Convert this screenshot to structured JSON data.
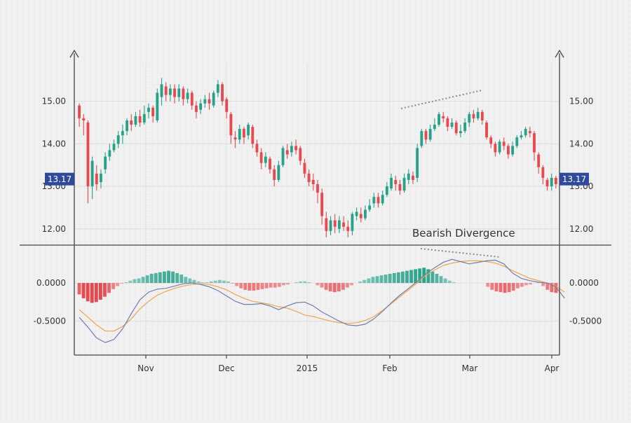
{
  "chart_data": [
    {
      "type": "candlestick",
      "title": "",
      "x_ticks": [
        "Nov",
        "Dec",
        "2015",
        "Feb",
        "Mar",
        "Apr"
      ],
      "y_ticks": [
        "15.00",
        "14.00",
        "13.00",
        "12.00"
      ],
      "ylim": [
        11.7,
        15.9
      ],
      "grid": true,
      "price_tag": "13.17",
      "price_value": 13.17,
      "annotation": "Bearish Divergence",
      "colors": {
        "up": "#26a289",
        "down": "#e8484e",
        "trendline": "#8a8a8a"
      },
      "candles": [
        [
          14.9,
          14.6,
          14.95,
          14.4
        ],
        [
          14.6,
          14.55,
          14.7,
          14.2
        ],
        [
          14.5,
          13.0,
          14.55,
          12.6
        ],
        [
          13.0,
          13.6,
          13.7,
          12.7
        ],
        [
          13.3,
          13.05,
          13.5,
          12.9
        ],
        [
          13.1,
          13.3,
          13.4,
          12.95
        ],
        [
          13.4,
          13.7,
          13.8,
          13.3
        ],
        [
          13.7,
          13.85,
          14.0,
          13.6
        ],
        [
          13.85,
          14.0,
          14.1,
          13.8
        ],
        [
          14.0,
          14.2,
          14.3,
          13.9
        ],
        [
          14.2,
          14.3,
          14.45,
          14.0
        ],
        [
          14.3,
          14.55,
          14.6,
          14.2
        ],
        [
          14.55,
          14.45,
          14.7,
          14.3
        ],
        [
          14.45,
          14.65,
          14.75,
          14.4
        ],
        [
          14.65,
          14.5,
          14.8,
          14.4
        ],
        [
          14.5,
          14.7,
          14.9,
          14.45
        ],
        [
          14.75,
          14.85,
          14.95,
          14.6
        ],
        [
          14.85,
          14.65,
          14.9,
          14.5
        ],
        [
          14.55,
          15.2,
          15.3,
          14.5
        ],
        [
          15.1,
          15.4,
          15.55,
          14.9
        ],
        [
          15.35,
          15.15,
          15.45,
          15.0
        ],
        [
          15.15,
          15.3,
          15.4,
          15.0
        ],
        [
          15.3,
          15.1,
          15.4,
          14.95
        ],
        [
          15.1,
          15.3,
          15.4,
          15.0
        ],
        [
          15.3,
          15.05,
          15.35,
          14.9
        ],
        [
          15.05,
          15.2,
          15.3,
          14.95
        ],
        [
          15.2,
          14.9,
          15.25,
          14.8
        ],
        [
          14.9,
          14.75,
          15.0,
          14.6
        ],
        [
          14.8,
          14.95,
          15.05,
          14.7
        ],
        [
          14.95,
          15.05,
          15.15,
          14.85
        ],
        [
          15.05,
          14.95,
          15.2,
          14.8
        ],
        [
          14.9,
          15.2,
          15.25,
          14.85
        ],
        [
          15.2,
          15.4,
          15.5,
          15.1
        ],
        [
          15.4,
          15.0,
          15.45,
          14.9
        ],
        [
          15.05,
          14.75,
          15.1,
          14.6
        ],
        [
          14.7,
          14.2,
          14.75,
          14.0
        ],
        [
          14.15,
          14.1,
          14.3,
          13.9
        ],
        [
          14.1,
          14.35,
          14.45,
          14.0
        ],
        [
          14.35,
          14.15,
          14.4,
          14.0
        ],
        [
          14.2,
          14.45,
          14.5,
          14.1
        ],
        [
          14.4,
          14.0,
          14.45,
          13.9
        ],
        [
          14.0,
          13.8,
          14.1,
          13.7
        ],
        [
          13.8,
          13.55,
          13.9,
          13.4
        ],
        [
          13.55,
          13.7,
          13.8,
          13.45
        ],
        [
          13.65,
          13.4,
          13.7,
          13.3
        ],
        [
          13.4,
          13.15,
          13.5,
          13.0
        ],
        [
          13.15,
          13.5,
          13.6,
          13.1
        ],
        [
          13.5,
          13.9,
          13.95,
          13.45
        ],
        [
          13.85,
          13.75,
          14.0,
          13.65
        ],
        [
          13.8,
          13.95,
          14.05,
          13.7
        ],
        [
          13.95,
          13.85,
          14.1,
          13.75
        ],
        [
          13.9,
          13.6,
          13.95,
          13.5
        ],
        [
          13.55,
          13.3,
          13.65,
          13.2
        ],
        [
          13.3,
          13.1,
          13.4,
          13.0
        ],
        [
          13.15,
          13.05,
          13.3,
          12.9
        ],
        [
          13.05,
          12.85,
          13.15,
          12.6
        ],
        [
          12.85,
          12.3,
          12.95,
          12.1
        ],
        [
          12.25,
          11.95,
          12.4,
          11.8
        ],
        [
          11.95,
          12.2,
          12.3,
          11.85
        ],
        [
          12.2,
          12.05,
          12.35,
          11.9
        ],
        [
          12.0,
          12.2,
          12.3,
          11.9
        ],
        [
          12.15,
          12.05,
          12.3,
          11.95
        ],
        [
          12.05,
          11.95,
          12.2,
          11.8
        ],
        [
          11.95,
          12.35,
          12.4,
          11.85
        ],
        [
          12.3,
          12.4,
          12.5,
          12.2
        ],
        [
          12.35,
          12.25,
          12.5,
          12.15
        ],
        [
          12.25,
          12.45,
          12.55,
          12.2
        ],
        [
          12.45,
          12.55,
          12.7,
          12.4
        ],
        [
          12.6,
          12.75,
          12.85,
          12.5
        ],
        [
          12.75,
          12.6,
          12.85,
          12.5
        ],
        [
          12.6,
          12.8,
          12.9,
          12.55
        ],
        [
          12.8,
          13.0,
          13.1,
          12.75
        ],
        [
          12.95,
          13.2,
          13.3,
          12.9
        ],
        [
          13.15,
          13.05,
          13.25,
          12.9
        ],
        [
          13.05,
          12.9,
          13.15,
          12.8
        ],
        [
          12.9,
          13.2,
          13.3,
          12.85
        ],
        [
          13.15,
          13.3,
          13.4,
          13.05
        ],
        [
          13.25,
          13.15,
          13.35,
          13.05
        ],
        [
          13.2,
          13.9,
          14.0,
          13.1
        ],
        [
          13.95,
          14.3,
          14.35,
          13.9
        ],
        [
          14.3,
          14.1,
          14.35,
          14.0
        ],
        [
          14.1,
          14.35,
          14.45,
          14.05
        ],
        [
          14.35,
          14.45,
          14.6,
          14.3
        ],
        [
          14.45,
          14.7,
          14.75,
          14.4
        ],
        [
          14.65,
          14.6,
          14.75,
          14.5
        ],
        [
          14.6,
          14.4,
          14.65,
          14.3
        ],
        [
          14.4,
          14.5,
          14.6,
          14.35
        ],
        [
          14.5,
          14.25,
          14.55,
          14.2
        ],
        [
          14.25,
          14.3,
          14.45,
          14.15
        ],
        [
          14.3,
          14.5,
          14.6,
          14.25
        ],
        [
          14.5,
          14.7,
          14.75,
          14.4
        ],
        [
          14.7,
          14.6,
          14.8,
          14.5
        ],
        [
          14.6,
          14.75,
          14.85,
          14.55
        ],
        [
          14.75,
          14.55,
          14.8,
          14.45
        ],
        [
          14.5,
          14.15,
          14.55,
          14.1
        ],
        [
          14.15,
          14.0,
          14.2,
          13.9
        ],
        [
          14.0,
          13.8,
          14.05,
          13.7
        ],
        [
          13.8,
          14.05,
          14.1,
          13.75
        ],
        [
          14.05,
          13.95,
          14.15,
          13.85
        ],
        [
          13.95,
          13.75,
          14.0,
          13.65
        ],
        [
          13.75,
          13.95,
          14.05,
          13.7
        ],
        [
          13.95,
          14.15,
          14.2,
          13.9
        ],
        [
          14.15,
          14.2,
          14.3,
          14.1
        ],
        [
          14.2,
          14.35,
          14.4,
          14.15
        ],
        [
          14.3,
          14.25,
          14.4,
          14.15
        ],
        [
          14.25,
          13.8,
          14.3,
          13.6
        ],
        [
          13.75,
          13.45,
          13.8,
          13.3
        ],
        [
          13.45,
          13.2,
          13.5,
          13.05
        ],
        [
          13.15,
          13.0,
          13.2,
          12.9
        ],
        [
          13.0,
          13.2,
          13.3,
          12.9
        ],
        [
          13.2,
          13.05,
          13.25,
          12.95
        ]
      ]
    },
    {
      "type": "macd",
      "title": "",
      "x_ticks": [
        "Nov",
        "Dec",
        "2015",
        "Feb",
        "Mar",
        "Apr"
      ],
      "y_ticks": [
        "0.0000",
        "-0.5000"
      ],
      "ylim": [
        -0.88,
        0.45
      ],
      "grid": true,
      "colors": {
        "pos_hist": "#26a289",
        "neg_hist": "#e8484e",
        "macd_line": "#6f7fb0",
        "signal_line": "#f0a44a",
        "trendline": "#8a8a8a"
      },
      "macd_line": {
        "x": [
          0,
          2,
          4,
          6,
          8,
          10,
          12,
          14,
          16,
          18,
          20,
          22,
          24,
          26,
          28,
          30,
          32,
          34,
          36,
          38,
          40,
          42,
          44,
          46,
          48,
          50,
          52,
          54,
          56,
          58,
          60,
          62,
          64,
          66,
          68,
          70,
          72,
          74,
          76,
          78,
          80,
          82,
          84,
          86,
          88,
          90,
          92,
          94,
          96,
          98,
          100,
          102,
          104,
          106,
          108,
          110,
          112
        ],
        "values": [
          -0.45,
          -0.58,
          -0.72,
          -0.78,
          -0.74,
          -0.6,
          -0.4,
          -0.22,
          -0.12,
          -0.08,
          -0.07,
          -0.04,
          -0.01,
          0.0,
          -0.02,
          -0.05,
          -0.1,
          -0.17,
          -0.24,
          -0.28,
          -0.28,
          -0.27,
          -0.3,
          -0.35,
          -0.3,
          -0.26,
          -0.25,
          -0.3,
          -0.38,
          -0.44,
          -0.5,
          -0.55,
          -0.56,
          -0.54,
          -0.47,
          -0.37,
          -0.26,
          -0.16,
          -0.07,
          0.02,
          0.12,
          0.2,
          0.27,
          0.31,
          0.28,
          0.25,
          0.27,
          0.29,
          0.3,
          0.25,
          0.13,
          0.06,
          0.03,
          0.01,
          0.0,
          -0.05,
          -0.2
        ]
      },
      "signal_line": {
        "x": [
          0,
          2,
          4,
          6,
          8,
          10,
          12,
          14,
          16,
          18,
          20,
          22,
          24,
          26,
          28,
          30,
          32,
          34,
          36,
          38,
          40,
          42,
          44,
          46,
          48,
          50,
          52,
          54,
          56,
          58,
          60,
          62,
          64,
          66,
          68,
          70,
          72,
          74,
          76,
          78,
          80,
          82,
          84,
          86,
          88,
          90,
          92,
          94,
          96,
          98,
          100,
          102,
          104,
          106,
          108,
          110,
          112
        ],
        "values": [
          -0.35,
          -0.45,
          -0.55,
          -0.63,
          -0.63,
          -0.57,
          -0.47,
          -0.34,
          -0.24,
          -0.16,
          -0.11,
          -0.07,
          -0.04,
          -0.02,
          -0.01,
          -0.02,
          -0.05,
          -0.09,
          -0.15,
          -0.2,
          -0.24,
          -0.26,
          -0.28,
          -0.31,
          -0.33,
          -0.37,
          -0.42,
          -0.44,
          -0.47,
          -0.5,
          -0.52,
          -0.53,
          -0.52,
          -0.49,
          -0.44,
          -0.36,
          -0.27,
          -0.18,
          -0.09,
          0.0,
          0.1,
          0.17,
          0.23,
          0.26,
          0.28,
          0.29,
          0.29,
          0.28,
          0.26,
          0.22,
          0.16,
          0.11,
          0.06,
          0.03,
          0.0,
          -0.04,
          -0.12
        ]
      },
      "histogram": [
        -0.15,
        -0.2,
        -0.24,
        -0.26,
        -0.25,
        -0.22,
        -0.18,
        -0.13,
        -0.08,
        -0.04,
        -0.01,
        0.01,
        0.03,
        0.05,
        0.06,
        0.08,
        0.1,
        0.12,
        0.13,
        0.14,
        0.15,
        0.16,
        0.15,
        0.13,
        0.11,
        0.08,
        0.06,
        0.04,
        0.02,
        0.01,
        0.01,
        0.02,
        0.03,
        0.04,
        0.03,
        0.02,
        -0.01,
        -0.04,
        -0.07,
        -0.09,
        -0.1,
        -0.1,
        -0.09,
        -0.08,
        -0.07,
        -0.06,
        -0.06,
        -0.05,
        -0.03,
        -0.02,
        0.0,
        0.01,
        0.02,
        0.02,
        0.01,
        0.0,
        -0.03,
        -0.06,
        -0.09,
        -0.11,
        -0.12,
        -0.11,
        -0.09,
        -0.06,
        -0.03,
        0.0,
        0.02,
        0.04,
        0.06,
        0.08,
        0.09,
        0.1,
        0.11,
        0.12,
        0.13,
        0.14,
        0.15,
        0.16,
        0.17,
        0.18,
        0.19,
        0.2,
        0.18,
        0.15,
        0.12,
        0.09,
        0.06,
        0.03,
        0.01,
        0.0,
        0.0,
        0.0,
        0.0,
        0.0,
        0.0,
        0.0,
        -0.05,
        -0.09,
        -0.11,
        -0.12,
        -0.13,
        -0.12,
        -0.1,
        -0.07,
        -0.05,
        -0.03,
        -0.02,
        0.0,
        0.01,
        -0.04,
        -0.09,
        -0.12,
        -0.13
      ]
    }
  ]
}
